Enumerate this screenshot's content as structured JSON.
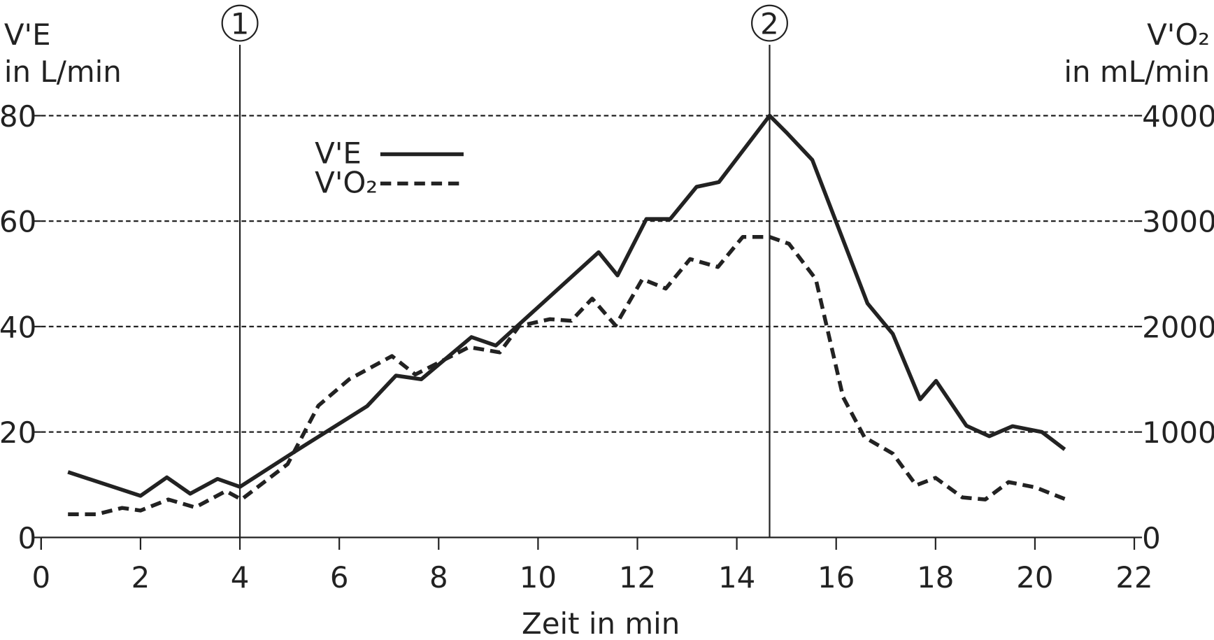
{
  "chart_data": {
    "type": "line",
    "xlabel": "Zeit in min",
    "ylabel": [
      "V'E",
      "in L/min"
    ],
    "y2label": [
      "V'O₂",
      "in mL/min"
    ],
    "xlim": [
      0,
      22
    ],
    "xticks": [
      0,
      2,
      4,
      6,
      8,
      10,
      12,
      14,
      16,
      18,
      20,
      22
    ],
    "ylim": [
      0,
      80
    ],
    "yticks": [
      0,
      20,
      40,
      60,
      80
    ],
    "y2lim": [
      0,
      4000
    ],
    "y2ticks": [
      0,
      1000,
      2000,
      3000,
      4000
    ],
    "grid": true,
    "legend": "top-center",
    "markers": [
      {
        "x": 4,
        "label": "1"
      },
      {
        "x": 14.66,
        "label": "2"
      }
    ],
    "series": [
      {
        "name": "V'E",
        "color": "#222222",
        "style": "solid",
        "x": [
          0.54,
          2.0,
          2.53,
          3.0,
          3.55,
          4.0,
          5.09,
          6.56,
          7.14,
          7.65,
          8.66,
          9.15,
          11.22,
          11.6,
          12.18,
          12.66,
          13.19,
          13.64,
          14.66,
          15.02,
          15.52,
          16.63,
          17.14,
          17.69,
          18.01,
          18.62,
          19.08,
          19.55,
          20.14,
          20.6
        ],
        "values": [
          12.4,
          7.9,
          11.4,
          8.3,
          11.1,
          9.6,
          16.2,
          24.9,
          30.7,
          30.0,
          38.0,
          36.4,
          54.1,
          49.7,
          60.4,
          60.4,
          66.5,
          67.4,
          80,
          76.6,
          71.6,
          44.4,
          38.6,
          26.2,
          29.7,
          21.2,
          19.2,
          21.1,
          20.0,
          16.7
        ]
      },
      {
        "name": "V'O₂",
        "color": "#222222",
        "style": "dashed",
        "axis": "y2",
        "x": [
          0.54,
          1.12,
          1.63,
          2.0,
          2.56,
          3.1,
          3.72,
          4.03,
          4.96,
          5.58,
          6.2,
          7.06,
          7.53,
          8.61,
          9.23,
          9.62,
          10.24,
          10.67,
          11.09,
          11.56,
          12.1,
          12.57,
          13.06,
          13.62,
          14.12,
          14.66,
          15.05,
          15.59,
          16.14,
          16.57,
          17.14,
          17.61,
          18.0,
          18.54,
          19.0,
          19.47,
          20.01,
          20.6
        ],
        "values": [
          220,
          220,
          280,
          255,
          360,
          285,
          440,
          360,
          695,
          1250,
          1500,
          1720,
          1545,
          1805,
          1755,
          2005,
          2070,
          2055,
          2265,
          2010,
          2450,
          2360,
          2640,
          2565,
          2850,
          2850,
          2785,
          2450,
          1330,
          950,
          795,
          495,
          565,
          380,
          360,
          525,
          475,
          365
        ]
      }
    ]
  }
}
